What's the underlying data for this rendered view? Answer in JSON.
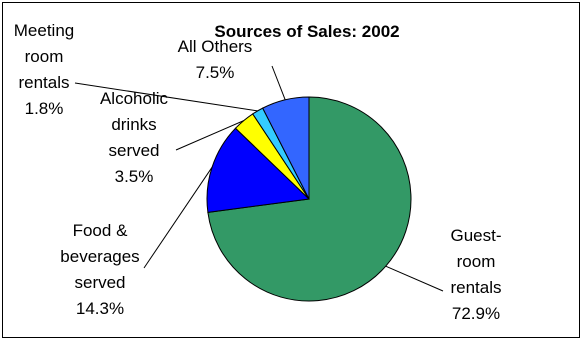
{
  "chart_data": {
    "type": "pie",
    "title": "Sources of Sales: 2002",
    "slices": [
      {
        "label_lines": [
          "Guest-",
          "room",
          "rentals",
          "72.9%"
        ],
        "value": 72.9,
        "color": "#339966"
      },
      {
        "label_lines": [
          "Food &",
          "beverages",
          "served",
          "14.3%"
        ],
        "value": 14.3,
        "color": "#0000ff"
      },
      {
        "label_lines": [
          "Alcoholic",
          "drinks",
          "served",
          "3.5%"
        ],
        "value": 3.5,
        "color": "#ffff00"
      },
      {
        "label_lines": [
          "Meeting",
          "room",
          "rentals",
          "1.8%"
        ],
        "value": 1.8,
        "color": "#33ccff"
      },
      {
        "label_lines": [
          "All Others",
          "7.5%"
        ],
        "value": 7.5,
        "color": "#3366ff"
      }
    ],
    "legend": "none",
    "grid": false
  }
}
